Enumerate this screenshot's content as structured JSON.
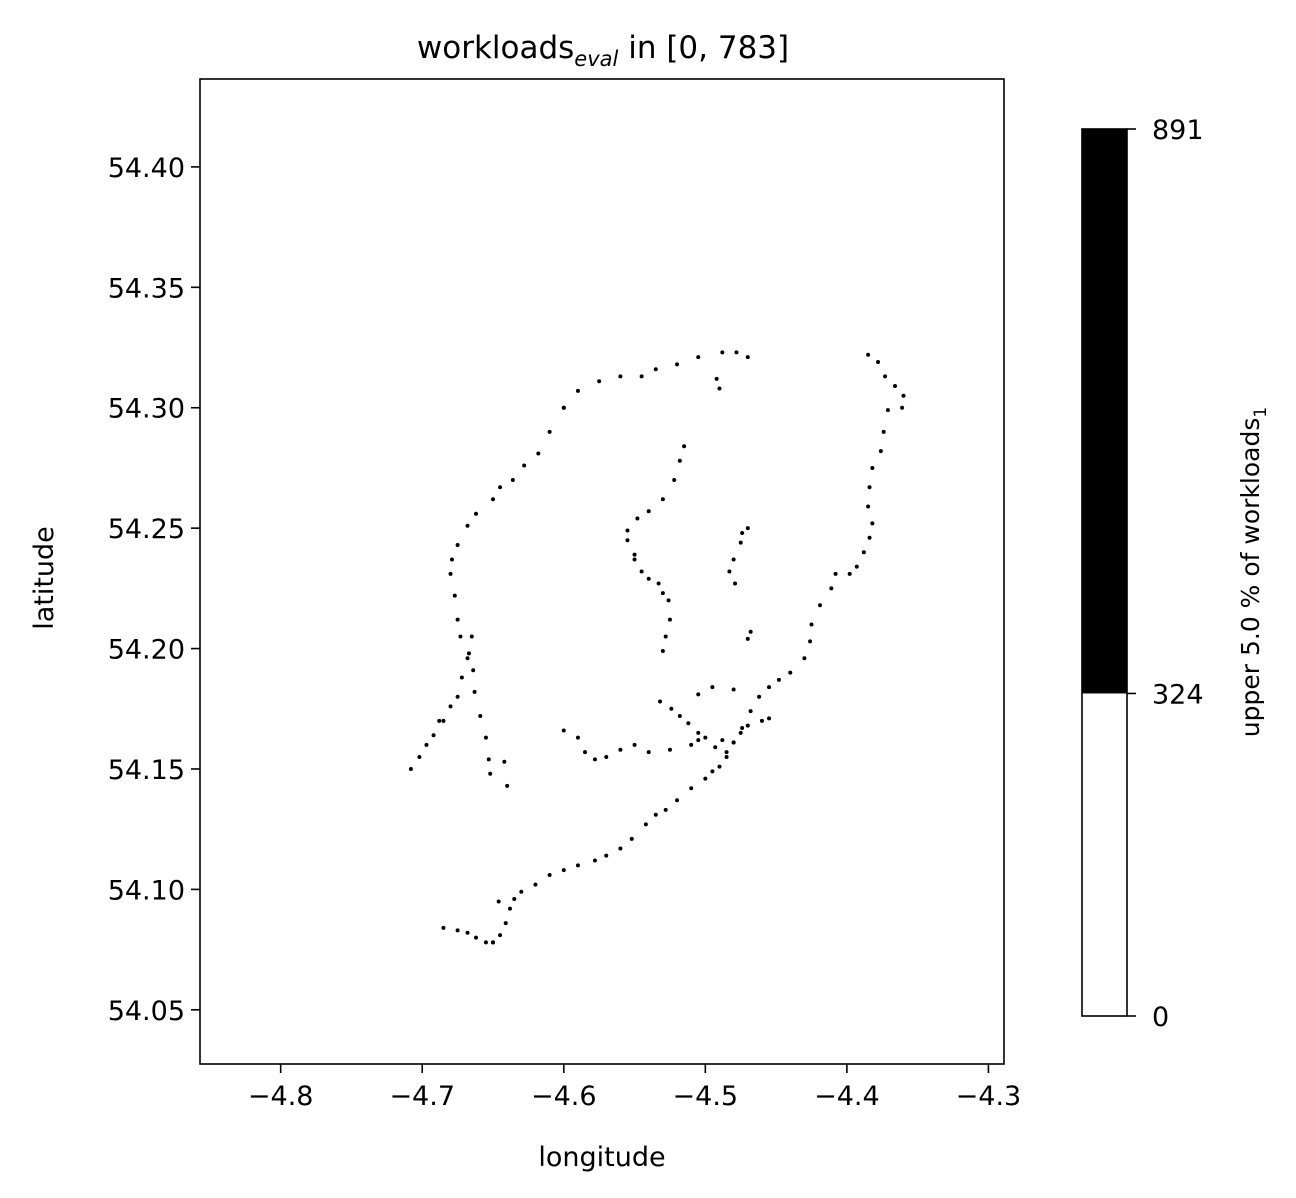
{
  "chart_data": {
    "type": "scatter",
    "title": {
      "prefix": "workloads",
      "subscript": "eval",
      "suffix": " in [0, 783]"
    },
    "xlabel": "longitude",
    "ylabel": "latitude",
    "xlim": [
      -4.857,
      -4.289
    ],
    "ylim": [
      54.0275,
      54.4365
    ],
    "xticks": [
      -4.8,
      -4.7,
      -4.6,
      -4.5,
      -4.4,
      -4.3
    ],
    "xtick_labels": [
      "−4.8",
      "−4.7",
      "−4.6",
      "−4.5",
      "−4.4",
      "−4.3"
    ],
    "yticks": [
      54.05,
      54.1,
      54.15,
      54.2,
      54.25,
      54.3,
      54.35,
      54.4
    ],
    "ytick_labels": [
      "54.05",
      "54.10",
      "54.15",
      "54.20",
      "54.25",
      "54.30",
      "54.35",
      "54.40"
    ],
    "grid": false,
    "point_color": "#000000",
    "series": [
      {
        "points": [
          [
            -4.6,
            54.3
          ],
          [
            -4.59,
            54.307
          ],
          [
            -4.575,
            54.311
          ],
          [
            -4.56,
            54.313
          ],
          [
            -4.545,
            54.313
          ],
          [
            -4.535,
            54.316
          ],
          [
            -4.52,
            54.318
          ],
          [
            -4.505,
            54.321
          ],
          [
            -4.488,
            54.323
          ],
          [
            -4.478,
            54.323
          ],
          [
            -4.47,
            54.321
          ],
          [
            -4.6,
            54.3
          ],
          [
            -4.61,
            54.29
          ],
          [
            -4.618,
            54.281
          ],
          [
            -4.628,
            54.276
          ],
          [
            -4.636,
            54.27
          ],
          [
            -4.645,
            54.267
          ],
          [
            -4.65,
            54.262
          ],
          [
            -4.662,
            54.256
          ],
          [
            -4.668,
            54.251
          ],
          [
            -4.675,
            54.243
          ],
          [
            -4.679,
            54.237
          ],
          [
            -4.68,
            54.231
          ],
          [
            -4.677,
            54.222
          ],
          [
            -4.675,
            54.212
          ],
          [
            -4.673,
            54.205
          ],
          [
            -4.667,
            54.198
          ],
          [
            -4.664,
            54.191
          ],
          [
            -4.663,
            54.182
          ],
          [
            -4.659,
            54.172
          ],
          [
            -4.655,
            54.163
          ],
          [
            -4.653,
            54.154
          ],
          [
            -4.652,
            54.148
          ],
          [
            -4.665,
            54.205
          ],
          [
            -4.668,
            54.196
          ],
          [
            -4.672,
            54.188
          ],
          [
            -4.675,
            54.18
          ],
          [
            -4.68,
            54.176
          ],
          [
            -4.685,
            54.17
          ],
          [
            -4.692,
            54.164
          ],
          [
            -4.697,
            54.16
          ],
          [
            -4.702,
            54.155
          ],
          [
            -4.708,
            54.15
          ],
          [
            -4.688,
            54.17
          ],
          [
            -4.385,
            54.322
          ],
          [
            -4.378,
            54.319
          ],
          [
            -4.373,
            54.313
          ],
          [
            -4.366,
            54.309
          ],
          [
            -4.36,
            54.305
          ],
          [
            -4.361,
            54.3
          ],
          [
            -4.371,
            54.299
          ],
          [
            -4.374,
            54.29
          ],
          [
            -4.376,
            54.282
          ],
          [
            -4.382,
            54.275
          ],
          [
            -4.384,
            54.267
          ],
          [
            -4.385,
            54.259
          ],
          [
            -4.382,
            54.252
          ],
          [
            -4.384,
            54.246
          ],
          [
            -4.388,
            54.24
          ],
          [
            -4.393,
            54.234
          ],
          [
            -4.398,
            54.231
          ],
          [
            -4.408,
            54.231
          ],
          [
            -4.411,
            54.225
          ],
          [
            -4.419,
            54.218
          ],
          [
            -4.425,
            54.21
          ],
          [
            -4.426,
            54.203
          ],
          [
            -4.43,
            54.196
          ],
          [
            -4.44,
            54.19
          ],
          [
            -4.448,
            54.187
          ],
          [
            -4.455,
            54.184
          ],
          [
            -4.462,
            54.18
          ],
          [
            -4.468,
            54.174
          ],
          [
            -4.474,
            54.167
          ],
          [
            -4.48,
            54.161
          ],
          [
            -4.485,
            54.155
          ],
          [
            -4.49,
            54.151
          ],
          [
            -4.495,
            54.149
          ],
          [
            -4.5,
            54.146
          ],
          [
            -4.51,
            54.142
          ],
          [
            -4.52,
            54.137
          ],
          [
            -4.528,
            54.133
          ],
          [
            -4.535,
            54.131
          ],
          [
            -4.542,
            54.127
          ],
          [
            -4.552,
            54.121
          ],
          [
            -4.56,
            54.117
          ],
          [
            -4.57,
            54.114
          ],
          [
            -4.578,
            54.112
          ],
          [
            -4.59,
            54.11
          ],
          [
            -4.6,
            54.108
          ],
          [
            -4.61,
            54.106
          ],
          [
            -4.62,
            54.102
          ],
          [
            -4.63,
            54.099
          ],
          [
            -4.635,
            54.096
          ],
          [
            -4.638,
            54.092
          ],
          [
            -4.641,
            54.086
          ],
          [
            -4.645,
            54.081
          ],
          [
            -4.65,
            54.078
          ],
          [
            -4.65,
            54.078
          ],
          [
            -4.655,
            54.078
          ],
          [
            -4.662,
            54.08
          ],
          [
            -4.668,
            54.082
          ],
          [
            -4.675,
            54.083
          ],
          [
            -4.685,
            54.084
          ],
          [
            -4.646,
            54.095
          ],
          [
            -4.485,
            54.157
          ],
          [
            -4.48,
            54.161
          ],
          [
            -4.475,
            54.165
          ],
          [
            -4.47,
            54.168
          ],
          [
            -4.46,
            54.17
          ],
          [
            -4.455,
            54.171
          ],
          [
            -4.493,
            54.159
          ],
          [
            -4.488,
            54.162
          ],
          [
            -4.515,
            54.284
          ],
          [
            -4.518,
            54.278
          ],
          [
            -4.522,
            54.27
          ],
          [
            -4.53,
            54.262
          ],
          [
            -4.54,
            54.257
          ],
          [
            -4.548,
            54.254
          ],
          [
            -4.555,
            54.249
          ],
          [
            -4.555,
            54.245
          ],
          [
            -4.55,
            54.239
          ],
          [
            -4.545,
            54.232
          ],
          [
            -4.533,
            54.227
          ],
          [
            -4.526,
            54.22
          ],
          [
            -4.525,
            54.212
          ],
          [
            -4.528,
            54.205
          ],
          [
            -4.53,
            54.199
          ],
          [
            -4.55,
            54.237
          ],
          [
            -4.54,
            54.229
          ],
          [
            -4.53,
            54.223
          ],
          [
            -4.532,
            54.178
          ],
          [
            -4.524,
            54.175
          ],
          [
            -4.518,
            54.172
          ],
          [
            -4.512,
            54.169
          ],
          [
            -4.505,
            54.165
          ],
          [
            -4.5,
            54.163
          ],
          [
            -4.6,
            54.166
          ],
          [
            -4.59,
            54.163
          ],
          [
            -4.585,
            54.157
          ],
          [
            -4.578,
            54.154
          ],
          [
            -4.57,
            54.155
          ],
          [
            -4.56,
            54.158
          ],
          [
            -4.55,
            54.16
          ],
          [
            -4.54,
            54.157
          ],
          [
            -4.525,
            54.158
          ],
          [
            -4.51,
            54.16
          ],
          [
            -4.505,
            54.162
          ],
          [
            -4.505,
            54.181
          ],
          [
            -4.495,
            54.184
          ],
          [
            -4.47,
            54.25
          ],
          [
            -4.475,
            54.244
          ],
          [
            -4.48,
            54.237
          ],
          [
            -4.483,
            54.232
          ],
          [
            -4.479,
            54.227
          ],
          [
            -4.474,
            54.248
          ],
          [
            -4.468,
            54.207
          ],
          [
            -4.47,
            54.204
          ],
          [
            -4.49,
            54.308
          ],
          [
            -4.492,
            54.312
          ],
          [
            -4.48,
            54.183
          ],
          [
            -4.642,
            54.153
          ],
          [
            -4.64,
            54.143
          ]
        ]
      }
    ],
    "colorbar": {
      "label": "upper 5.0 % of workloads",
      "label_subscript": "1",
      "ticks": [
        0,
        324,
        891
      ],
      "tick_labels": [
        "0",
        "324",
        "891"
      ],
      "range": [
        0,
        891
      ],
      "bands": [
        {
          "from": 0,
          "to": 324,
          "color": "#ffffff"
        },
        {
          "from": 324,
          "to": 891,
          "color": "#000000"
        }
      ]
    }
  }
}
